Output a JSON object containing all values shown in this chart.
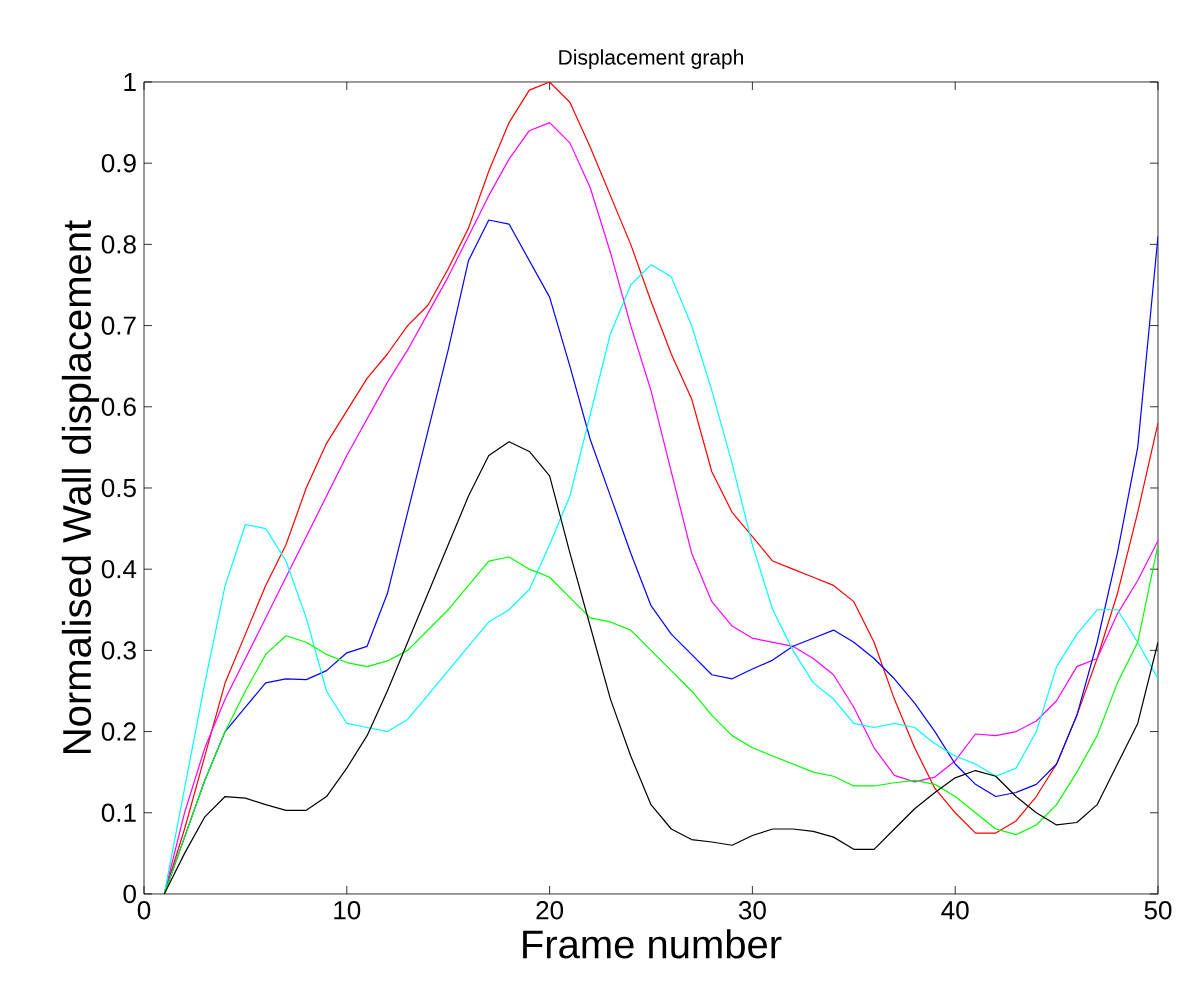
{
  "chart_data": {
    "type": "line",
    "title": "Displacement graph",
    "xlabel": "Frame number",
    "ylabel": "Normalised Wall displacement",
    "x": [
      1,
      2,
      3,
      4,
      5,
      6,
      7,
      8,
      9,
      10,
      11,
      12,
      13,
      14,
      15,
      16,
      17,
      18,
      19,
      20,
      21,
      22,
      23,
      24,
      25,
      26,
      27,
      28,
      29,
      30,
      31,
      32,
      33,
      34,
      35,
      36,
      37,
      38,
      39,
      40,
      41,
      42,
      43,
      44,
      45,
      46,
      47,
      48,
      49,
      50
    ],
    "series": [
      {
        "color": "#ff0000",
        "values": [
          0,
          0.08,
          0.17,
          0.26,
          0.32,
          0.38,
          0.43,
          0.5,
          0.555,
          0.595,
          0.635,
          0.665,
          0.7,
          0.725,
          0.77,
          0.82,
          0.89,
          0.95,
          0.99,
          1.0,
          0.975,
          0.92,
          0.86,
          0.8,
          0.73,
          0.665,
          0.61,
          0.52,
          0.47,
          0.44,
          0.41,
          0.4,
          0.39,
          0.38,
          0.36,
          0.31,
          0.24,
          0.18,
          0.13,
          0.1,
          0.075,
          0.075,
          0.09,
          0.12,
          0.16,
          0.22,
          0.29,
          0.37,
          0.47,
          0.58
        ]
      },
      {
        "color": "#ff00ff",
        "values": [
          0,
          0.1,
          0.18,
          0.24,
          0.29,
          0.34,
          0.39,
          0.44,
          0.49,
          0.54,
          0.585,
          0.63,
          0.67,
          0.715,
          0.76,
          0.81,
          0.86,
          0.905,
          0.94,
          0.95,
          0.925,
          0.87,
          0.79,
          0.7,
          0.62,
          0.52,
          0.42,
          0.36,
          0.33,
          0.315,
          0.31,
          0.305,
          0.29,
          0.27,
          0.23,
          0.18,
          0.146,
          0.138,
          0.144,
          0.164,
          0.197,
          0.195,
          0.2,
          0.213,
          0.238,
          0.28,
          0.29,
          0.345,
          0.386,
          0.435
        ]
      },
      {
        "color": "#0000ff",
        "values": [
          0,
          0.07,
          0.14,
          0.2,
          0.23,
          0.26,
          0.265,
          0.264,
          0.275,
          0.297,
          0.305,
          0.37,
          0.47,
          0.57,
          0.67,
          0.78,
          0.83,
          0.825,
          0.78,
          0.735,
          0.65,
          0.56,
          0.49,
          0.42,
          0.355,
          0.32,
          0.295,
          0.27,
          0.265,
          0.277,
          0.288,
          0.305,
          0.315,
          0.325,
          0.31,
          0.29,
          0.265,
          0.235,
          0.2,
          0.16,
          0.135,
          0.12,
          0.125,
          0.135,
          0.16,
          0.22,
          0.31,
          0.42,
          0.55,
          0.81
        ]
      },
      {
        "color": "#00ffff",
        "values": [
          0,
          0.13,
          0.26,
          0.38,
          0.455,
          0.45,
          0.41,
          0.34,
          0.25,
          0.21,
          0.205,
          0.2,
          0.215,
          0.245,
          0.275,
          0.305,
          0.335,
          0.35,
          0.375,
          0.43,
          0.49,
          0.59,
          0.69,
          0.75,
          0.775,
          0.76,
          0.7,
          0.62,
          0.53,
          0.43,
          0.35,
          0.3,
          0.26,
          0.24,
          0.21,
          0.205,
          0.21,
          0.205,
          0.185,
          0.17,
          0.16,
          0.145,
          0.155,
          0.2,
          0.28,
          0.32,
          0.35,
          0.35,
          0.31,
          0.265
        ]
      },
      {
        "color": "#00ff00",
        "values": [
          0,
          0.07,
          0.14,
          0.2,
          0.25,
          0.295,
          0.318,
          0.31,
          0.295,
          0.285,
          0.28,
          0.287,
          0.3,
          0.325,
          0.35,
          0.38,
          0.41,
          0.415,
          0.4,
          0.39,
          0.365,
          0.34,
          0.335,
          0.325,
          0.3,
          0.275,
          0.25,
          0.22,
          0.195,
          0.18,
          0.17,
          0.16,
          0.15,
          0.145,
          0.133,
          0.133,
          0.137,
          0.14,
          0.135,
          0.12,
          0.1,
          0.08,
          0.073,
          0.085,
          0.11,
          0.15,
          0.195,
          0.26,
          0.31,
          0.43
        ]
      },
      {
        "color": "#000000",
        "values": [
          0,
          0.05,
          0.095,
          0.12,
          0.118,
          0.11,
          0.103,
          0.103,
          0.12,
          0.155,
          0.195,
          0.25,
          0.31,
          0.37,
          0.43,
          0.49,
          0.54,
          0.557,
          0.545,
          0.515,
          0.42,
          0.33,
          0.24,
          0.17,
          0.11,
          0.08,
          0.067,
          0.064,
          0.06,
          0.072,
          0.08,
          0.08,
          0.077,
          0.07,
          0.055,
          0.055,
          0.08,
          0.105,
          0.125,
          0.143,
          0.152,
          0.145,
          0.12,
          0.1,
          0.085,
          0.088,
          0.11,
          0.16,
          0.21,
          0.31
        ]
      }
    ],
    "xlim": [
      0,
      50
    ],
    "ylim": [
      0,
      1
    ],
    "xticks": [
      0,
      10,
      20,
      30,
      40,
      50
    ],
    "yticks": [
      0,
      0.1,
      0.2,
      0.3,
      0.4,
      0.5,
      0.6,
      0.7,
      0.8,
      0.9,
      1
    ],
    "grid": false,
    "marker": "none",
    "line_style": "solid"
  }
}
